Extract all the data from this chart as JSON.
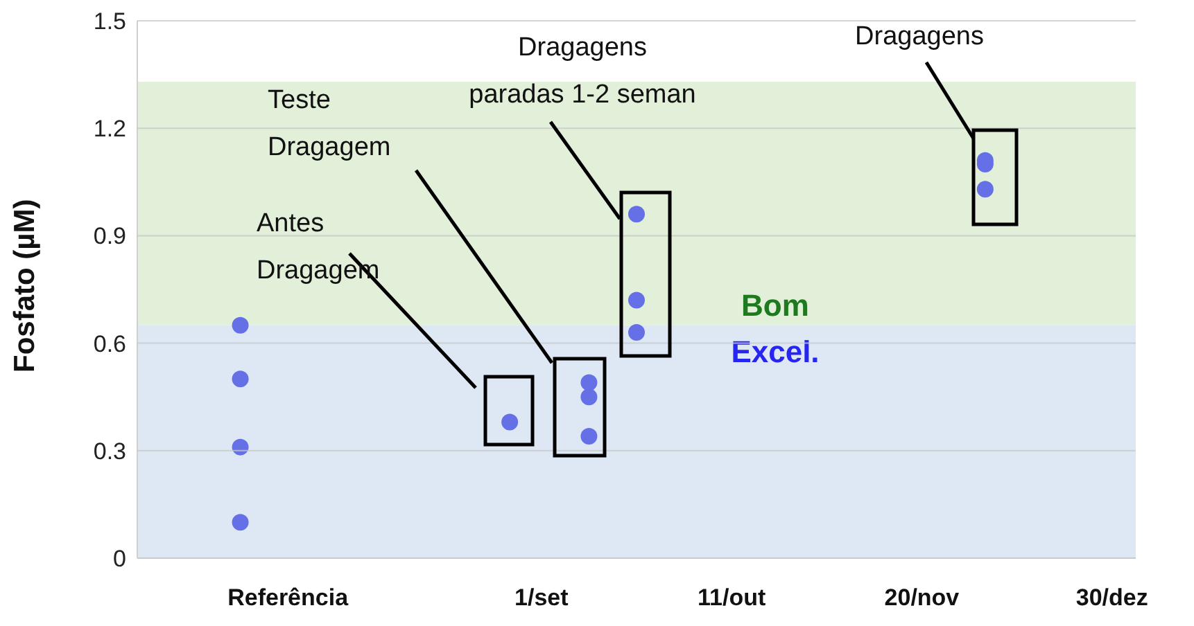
{
  "chart_data": {
    "type": "scatter",
    "ylabel": "Fosfato (µM)",
    "categories": [
      null,
      null,
      null,
      null,
      null,
      null,
      null,
      null,
      null,
      "Referência",
      null,
      null,
      null,
      null,
      null,
      null,
      null,
      null,
      null,
      null,
      null,
      null,
      null,
      null,
      null,
      "1/set",
      null,
      null,
      null,
      null,
      null,
      null,
      null,
      null,
      null,
      null,
      null,
      "11/out",
      null,
      null,
      null,
      null,
      null,
      null,
      null,
      null,
      null,
      null,
      null,
      "20/nov",
      null,
      null,
      null,
      null,
      null,
      null,
      null,
      null,
      null,
      null,
      null,
      "30/dez",
      null
    ],
    "ylim": [
      0,
      1.5
    ],
    "yticks": [
      0,
      0.3,
      0.6,
      0.9,
      1.2,
      1.5
    ],
    "grid": "y",
    "marker": "circle",
    "series": [
      {
        "color": "#6570e6",
        "values": [
          null,
          null,
          null,
          null,
          null,
          null,
          0.65,
          null,
          null,
          null,
          null,
          null,
          null,
          null,
          null,
          null,
          null,
          null,
          null,
          null,
          null,
          null,
          null,
          0.38,
          null,
          null,
          null,
          null,
          0.49,
          null,
          null,
          0.96,
          null,
          null,
          null,
          null,
          null,
          null,
          null,
          null,
          null,
          null,
          null,
          null,
          null,
          null,
          null,
          null,
          null,
          null,
          null,
          null,
          null,
          1.11,
          null,
          null,
          null,
          null,
          null,
          null,
          null,
          null,
          null
        ]
      },
      {
        "color": "#6570e6",
        "values": [
          null,
          null,
          null,
          null,
          null,
          null,
          0.5,
          null,
          null,
          null,
          null,
          null,
          null,
          null,
          null,
          null,
          null,
          null,
          null,
          null,
          null,
          null,
          null,
          null,
          null,
          null,
          null,
          null,
          0.45,
          null,
          null,
          0.72,
          null,
          null,
          null,
          null,
          null,
          null,
          null,
          null,
          null,
          null,
          null,
          null,
          null,
          null,
          null,
          null,
          null,
          null,
          null,
          null,
          null,
          1.1,
          null,
          null,
          null,
          null,
          null,
          null,
          null,
          null,
          null
        ]
      },
      {
        "color": "#6570e6",
        "values": [
          null,
          null,
          null,
          null,
          null,
          null,
          0.31,
          null,
          null,
          null,
          null,
          null,
          null,
          null,
          null,
          null,
          null,
          null,
          null,
          null,
          null,
          null,
          null,
          null,
          null,
          null,
          null,
          null,
          0.34,
          null,
          null,
          0.63,
          null,
          null,
          null,
          null,
          null,
          null,
          null,
          null,
          null,
          null,
          null,
          null,
          null,
          null,
          null,
          null,
          null,
          null,
          null,
          null,
          null,
          1.03,
          null,
          null,
          null,
          null,
          null,
          null,
          null,
          null,
          null
        ]
      },
      {
        "color": "#6570e6",
        "values": [
          null,
          null,
          null,
          null,
          null,
          null,
          0.1,
          null,
          null,
          null,
          null,
          null,
          null,
          null,
          null,
          null,
          null,
          null,
          null,
          null,
          null,
          null,
          null,
          null,
          null,
          null,
          null,
          null,
          null,
          null,
          null,
          null,
          null,
          null,
          null,
          null,
          null,
          null,
          null,
          null,
          null,
          null,
          null,
          null,
          null,
          null,
          null,
          null,
          null,
          null,
          null,
          null,
          null,
          null,
          null,
          null,
          null,
          null,
          null,
          null,
          null,
          null,
          null
        ]
      }
    ],
    "bands": [
      {
        "axis": "y",
        "from": 0.65,
        "to": 1.33,
        "label": "Bom",
        "color": "#e2efd9"
      },
      {
        "axis": "y",
        "from": 0,
        "to": 0.65,
        "label": "Excel.",
        "color": "#dee8f4"
      }
    ],
    "annotations": [
      "Antes\nDragagem",
      "Teste\nDragagem",
      "Dragagens\nparadas 1-2 seman",
      "Dragagens"
    ]
  }
}
